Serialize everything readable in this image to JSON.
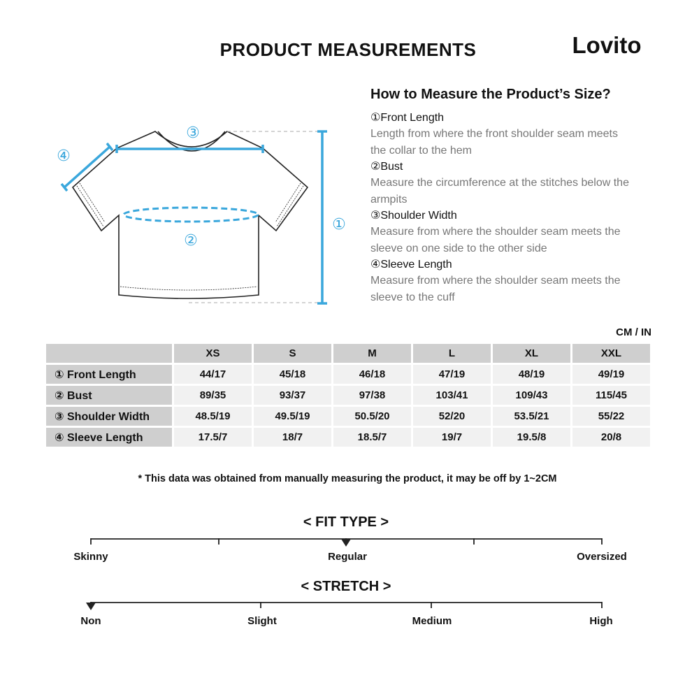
{
  "header": {
    "title": "PRODUCT MEASUREMENTS",
    "brand": "Lovito"
  },
  "diagram": {
    "labels": [
      "①",
      "②",
      "③",
      "④"
    ]
  },
  "guide": {
    "title": "How to Measure the Product’s Size?",
    "items": [
      {
        "name": "①Front Length",
        "text": "Length from where the front shoulder seam meets the collar to the hem"
      },
      {
        "name": "②Bust",
        "text": "Measure the circumference at the stitches below the armpits"
      },
      {
        "name": "③Shoulder Width",
        "text": "Measure from where the shoulder seam meets the sleeve on one side to the other side"
      },
      {
        "name": "④Sleeve Length",
        "text": "Measure from where the shoulder seam meets the sleeve to the cuff"
      }
    ]
  },
  "table": {
    "unit": "CM / IN",
    "columns": [
      "XS",
      "S",
      "M",
      "L",
      "XL",
      "XXL"
    ],
    "rows": [
      [
        "① Front Length",
        "44/17",
        "45/18",
        "46/18",
        "47/19",
        "48/19",
        "49/19"
      ],
      [
        "② Bust",
        "89/35",
        "93/37",
        "97/38",
        "103/41",
        "109/43",
        "115/45"
      ],
      [
        "③ Shoulder Width",
        "48.5/19",
        "49.5/19",
        "50.5/20",
        "52/20",
        "53.5/21",
        "55/22"
      ],
      [
        "④ Sleeve Length",
        "17.5/7",
        "18/7",
        "18.5/7",
        "19/7",
        "19.5/8",
        "20/8"
      ]
    ]
  },
  "note": "* This data was obtained from manually measuring the product, it may be off by 1~2CM",
  "fit_type": {
    "title": "< FIT TYPE >",
    "labels": [
      "Skinny",
      "Regular",
      "Oversized"
    ]
  },
  "stretch": {
    "title": "< STRETCH >",
    "labels": [
      "Non",
      "Slight",
      "Medium",
      "High"
    ]
  }
}
